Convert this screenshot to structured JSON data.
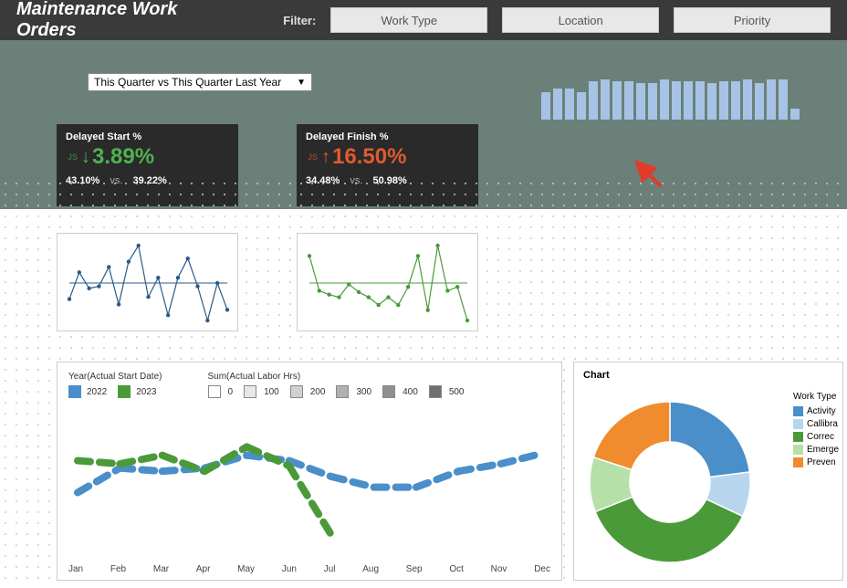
{
  "header": {
    "title": "Maintenance Work Orders",
    "filter_label": "Filter:",
    "filters": [
      "Work Type",
      "Location",
      "Priority"
    ]
  },
  "dropdown": {
    "value": "This Quarter vs This Quarter Last Year"
  },
  "kpis": [
    {
      "title": "Delayed Start %",
      "value": "3.89%",
      "direction": "down",
      "color": "#4fb24f",
      "current": "43.10%",
      "prior": "39.22%"
    },
    {
      "title": "Delayed Finish %",
      "value": "16.50%",
      "direction": "up",
      "color": "#e05a2f",
      "current": "34.48%",
      "prior": "50.98%"
    }
  ],
  "sparkbars": {
    "color": "#a6c3e6",
    "values": [
      30,
      34,
      34,
      30,
      42,
      44,
      42,
      42,
      40,
      40,
      44,
      42,
      42,
      42,
      40,
      42,
      42,
      44,
      40,
      44,
      44,
      12
    ]
  },
  "sparkline1": {
    "color": "#2a5b88",
    "points": [
      60,
      35,
      50,
      48,
      30,
      65,
      25,
      10,
      58,
      40,
      75,
      40,
      22,
      48,
      80,
      45,
      70
    ]
  },
  "sparkline2": {
    "color": "#4a9a3a",
    "points": [
      18,
      45,
      48,
      50,
      40,
      46,
      50,
      56,
      50,
      56,
      42,
      18,
      60,
      10,
      45,
      42,
      68
    ]
  },
  "big_chart": {
    "legend1_title": "Year(Actual Start Date)",
    "legend1_items": [
      "2022",
      "2023"
    ],
    "legend1_colors": [
      "#4a8fc9",
      "#4a9a3a"
    ],
    "legend2_title": "Sum(Actual Labor Hrs)",
    "legend2_items": [
      "0",
      "100",
      "200",
      "300",
      "400",
      "500"
    ],
    "months": [
      "Jan",
      "Feb",
      "Mar",
      "Apr",
      "May",
      "Jun",
      "Jul",
      "Aug",
      "Sep",
      "Oct",
      "Nov",
      "Dec"
    ],
    "series_2022": {
      "color": "#4a8fc9",
      "y": [
        75,
        52,
        55,
        52,
        40,
        45,
        60,
        70,
        70,
        55,
        48,
        38
      ]
    },
    "series_2023": {
      "color": "#4a9a3a",
      "y": [
        45,
        48,
        40,
        55,
        32,
        50,
        115
      ]
    }
  },
  "pie": {
    "title": "Chart",
    "legend_title": "Work Type",
    "slices": [
      {
        "label": "Activity",
        "color": "#4a8fc9",
        "pct": 23
      },
      {
        "label": "Callibra",
        "color": "#b7d6ee",
        "pct": 9
      },
      {
        "label": "Correc",
        "color": "#4a9a3a",
        "pct": 37
      },
      {
        "label": "Emerge",
        "color": "#b7e0a9",
        "pct": 11
      },
      {
        "label": "Preven",
        "color": "#f08c2e",
        "pct": 20
      }
    ],
    "inner_ratio": 0.5
  },
  "arrow_cursor": {
    "color": "#e23b2a"
  }
}
